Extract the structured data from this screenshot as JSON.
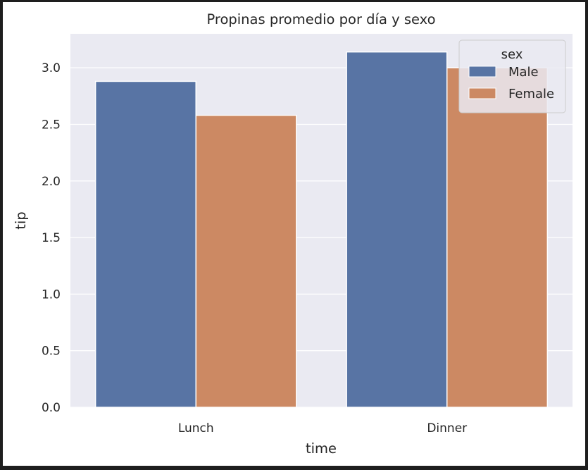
{
  "chart_data": {
    "type": "bar",
    "title": "Propinas promedio por día y sexo",
    "xlabel": "time",
    "ylabel": "tip",
    "categories": [
      "Lunch",
      "Dinner"
    ],
    "series": [
      {
        "name": "Male",
        "values": [
          2.88,
          3.14
        ],
        "color": "#5874a4"
      },
      {
        "name": "Female",
        "values": [
          2.58,
          3.0
        ],
        "color": "#cc8963"
      }
    ],
    "ylim": [
      0,
      3.3
    ],
    "yticks": [
      "0.0",
      "0.5",
      "1.0",
      "1.5",
      "2.0",
      "2.5",
      "3.0"
    ],
    "ytick_values": [
      0,
      0.5,
      1.0,
      1.5,
      2.0,
      2.5,
      3.0
    ],
    "grid": true,
    "background_color": "#eaeaf2",
    "legend": {
      "title": "sex",
      "placement": "upper right"
    }
  }
}
